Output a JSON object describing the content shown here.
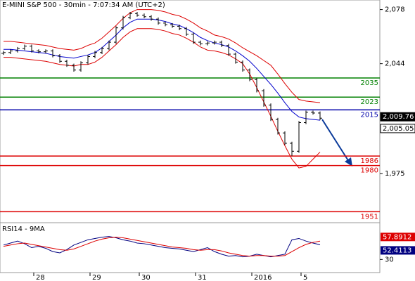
{
  "chart_data": {
    "type": "candlestick",
    "title": "E-MINI S&P 500 - 30min - 7:07:34 AM (UTC+2)",
    "categories": [
      null,
      null,
      null,
      null,
      null,
      "28",
      null,
      null,
      null,
      null,
      null,
      null,
      null,
      "29",
      null,
      null,
      null,
      null,
      null,
      null,
      "30",
      null,
      null,
      null,
      null,
      null,
      null,
      null,
      "31",
      null,
      null,
      null,
      null,
      null,
      null,
      null,
      "2016",
      null,
      null,
      null,
      null,
      null,
      null,
      "5",
      null,
      null
    ],
    "open": [
      2050.5,
      2051,
      2052,
      2053.5,
      2055,
      2052,
      2051.5,
      2052,
      2049,
      2045.5,
      2043,
      2040,
      2044.5,
      2048.5,
      2051,
      2053.5,
      2057.5,
      2066.5,
      2073,
      2075.5,
      2074.5,
      2073.5,
      2072,
      2069.5,
      2068.5,
      2067.5,
      2066,
      2062.5,
      2057.5,
      2056.5,
      2057,
      2057.5,
      2055.5,
      2050,
      2045,
      2040,
      2034,
      2027,
      2018,
      2009,
      2000.5,
      1994,
      1989,
      2007,
      2013.5,
      2013
    ],
    "high": [
      2052,
      2053,
      2054.5,
      2056,
      2056,
      2053,
      2053,
      2053,
      2050,
      2046.5,
      2044,
      2045.5,
      2049.5,
      2052,
      2054.5,
      2058.5,
      2067.5,
      2074,
      2076.5,
      2076.5,
      2075.5,
      2074.5,
      2073,
      2070.5,
      2069.5,
      2068.5,
      2067,
      2063.5,
      2058.5,
      2058,
      2058.5,
      2058.5,
      2056.5,
      2051,
      2046,
      2041,
      2035,
      2028,
      2019,
      2010,
      2001.5,
      1995,
      2008,
      2014.5,
      2014.5,
      2014
    ],
    "low": [
      2049.5,
      2050,
      2051,
      2052.5,
      2051,
      2050.5,
      2050.5,
      2048,
      2044.5,
      2042,
      2039,
      2039,
      2043.5,
      2047.5,
      2050,
      2052.5,
      2056.5,
      2065.5,
      2072,
      2073.5,
      2072.5,
      2071,
      2068.5,
      2067.5,
      2066.5,
      2065,
      2061.5,
      2056.5,
      2055.5,
      2055.5,
      2056,
      2054.5,
      2049,
      2044,
      2039,
      2033,
      2026,
      2017,
      2008,
      1999.5,
      1993,
      1986,
      1988,
      2006,
      2012,
      2008.5
    ],
    "close": [
      2051,
      2052,
      2053.5,
      2055,
      2052,
      2051.5,
      2052,
      2049,
      2045.5,
      2043,
      2040,
      2044.5,
      2048.5,
      2051,
      2053.5,
      2057.5,
      2066.5,
      2073,
      2075.5,
      2074.5,
      2073.5,
      2072,
      2069.5,
      2068.5,
      2067.5,
      2066,
      2062.5,
      2057.5,
      2056.5,
      2057,
      2057.5,
      2055.5,
      2050,
      2045,
      2040,
      2034,
      2027,
      2018,
      2009,
      2000.5,
      1994,
      1989,
      2007,
      2013.5,
      2013,
      2009.76
    ],
    "color": "#000000",
    "series": [
      {
        "color": "#0000cc",
        "values": [
          2053,
          2053,
          2052.5,
          2052,
          2051.5,
          2051,
          2050.5,
          2049.5,
          2048.5,
          2048,
          2047.5,
          2048.5,
          2049.5,
          2051,
          2054,
          2058,
          2062,
          2066.5,
          2070,
          2072,
          2072,
          2072,
          2071.5,
          2070.5,
          2069,
          2068,
          2066,
          2063.5,
          2060.5,
          2058.5,
          2057,
          2056,
          2054.5,
          2052,
          2049,
          2045.5,
          2041,
          2036,
          2031,
          2025.5,
          2019.5,
          2014,
          2010.5,
          2009.5,
          2009,
          2008.5
        ]
      },
      {
        "color": "#dd0000",
        "values": [
          2058,
          2058,
          2057.5,
          2057,
          2056.5,
          2056,
          2055.5,
          2054.5,
          2053.5,
          2053,
          2052.5,
          2053.5,
          2055.5,
          2057,
          2060,
          2064,
          2068,
          2072.5,
          2076,
          2078,
          2078,
          2078,
          2077.5,
          2076.5,
          2075,
          2074,
          2072,
          2069.5,
          2066.5,
          2064.5,
          2062,
          2061,
          2059.5,
          2057,
          2054,
          2051.5,
          2049,
          2046,
          2043,
          2037.5,
          2031.5,
          2026,
          2021.5,
          2020.5,
          2020,
          2019.5
        ]
      },
      {
        "color": "#dd0000",
        "values": [
          2048,
          2048,
          2047.5,
          2047,
          2046.5,
          2046,
          2045.5,
          2044.5,
          2043.5,
          2043,
          2042.5,
          2043.5,
          2043.5,
          2045,
          2048,
          2052,
          2056,
          2060.5,
          2064,
          2066,
          2066,
          2066,
          2065.5,
          2064.5,
          2063,
          2062,
          2060,
          2057.5,
          2054.5,
          2052.5,
          2052,
          2051,
          2049.5,
          2047,
          2044,
          2037.5,
          2029,
          2020,
          2011,
          2001.5,
          1992.5,
          1984,
          1978.5,
          1979.5,
          1984,
          1988.5
        ]
      }
    ],
    "ylim": [
      1945,
      2084
    ],
    "yticks": [
      {
        "value": 2078,
        "label": "2,078"
      },
      {
        "value": 2044,
        "label": "2,044"
      },
      {
        "value": 1975,
        "label": "1,975"
      }
    ],
    "levels": [
      {
        "value": 2035,
        "color": "#008000"
      },
      {
        "value": 2023,
        "color": "#008000"
      },
      {
        "value": 2015,
        "color": "#0000aa"
      },
      {
        "value": 1986,
        "color": "#dd0000"
      },
      {
        "value": 1980,
        "color": "#dd0000"
      },
      {
        "value": 1951,
        "color": "#dd0000"
      }
    ],
    "price_labels": [
      {
        "value": 2009.76,
        "label": "2,009.76",
        "color": "#000000"
      },
      {
        "value": 2005.05,
        "label": "2,005.05",
        "color": "#ffffff"
      }
    ],
    "rsi": {
      "title": "RSI14 - 9MA",
      "ylim": [
        10,
        85
      ],
      "yticks": [
        30
      ],
      "series": [
        {
          "color": "#000080",
          "values": [
            52,
            55,
            58,
            54,
            48,
            50,
            47,
            42,
            40,
            45,
            52,
            56,
            60,
            62,
            64,
            65,
            63,
            60,
            58,
            55,
            54,
            52,
            50,
            48,
            47,
            46,
            44,
            42,
            45,
            48,
            42,
            38,
            35,
            36,
            34,
            35,
            38,
            36,
            34,
            36,
            38,
            60,
            62,
            58,
            55,
            52.4113
          ]
        },
        {
          "color": "#dd0000",
          "values": [
            50,
            52,
            54,
            55,
            53,
            51,
            49,
            47,
            45,
            44,
            46,
            50,
            54,
            58,
            61,
            63,
            64,
            63,
            61,
            59,
            57,
            55,
            53,
            51,
            49,
            48,
            47,
            45,
            44,
            45,
            45,
            43,
            40,
            38,
            36,
            35,
            36,
            36,
            35,
            35,
            36,
            42,
            48,
            53,
            56,
            57.8912
          ]
        }
      ]
    }
  }
}
